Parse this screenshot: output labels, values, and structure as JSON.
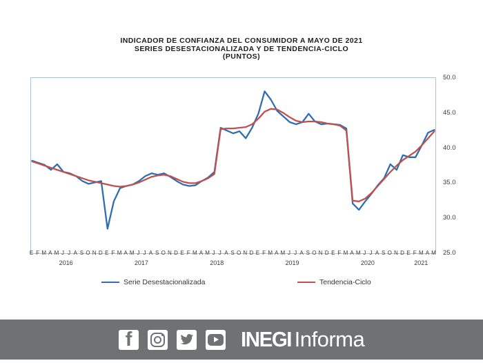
{
  "title": {
    "line1": "INDICADOR DE CONFIANZA DEL CONSUMIDOR A MAYO DE 2021",
    "line2": "SERIES DESESTACIONALIZADA Y DE TENDENCIA-CICLO",
    "line3": "(PUNTOS)"
  },
  "chart_data": {
    "type": "line",
    "title": "INDICADOR DE CONFIANZA DEL CONSUMIDOR A MAYO DE 2021",
    "subtitle": "SERIES DESESTACIONALIZADA Y DE TENDENCIA-CICLO (PUNTOS)",
    "ylim": [
      25,
      50
    ],
    "ytick_labels": [
      "50.0",
      "45.0",
      "40.0",
      "35.0",
      "30.0",
      "25.0"
    ],
    "grid": false,
    "legend_position": "bottom",
    "x_start": "Enero 2016",
    "x_end": "Mayo 2021",
    "month_labels": [
      "E",
      "F",
      "M",
      "A",
      "M",
      "J",
      "J",
      "A",
      "S",
      "O",
      "N",
      "D",
      "E",
      "F",
      "M",
      "A",
      "M",
      "J",
      "J",
      "A",
      "S",
      "O",
      "N",
      "D",
      "E",
      "F",
      "M",
      "A",
      "M",
      "J",
      "J",
      "A",
      "S",
      "O",
      "N",
      "D",
      "E",
      "F",
      "M",
      "A",
      "M",
      "J",
      "J",
      "A",
      "S",
      "O",
      "N",
      "D",
      "E",
      "F",
      "M",
      "A",
      "M",
      "J",
      "J",
      "A",
      "S",
      "O",
      "N",
      "D",
      "E",
      "F",
      "M",
      "A",
      "M"
    ],
    "year_labels": [
      {
        "label": "2016",
        "center": 5.5
      },
      {
        "label": "2017",
        "center": 17.5
      },
      {
        "label": "2018",
        "center": 29.5
      },
      {
        "label": "2019",
        "center": 41.5
      },
      {
        "label": "2020",
        "center": 53.5
      },
      {
        "label": "2021",
        "center": 62
      }
    ],
    "series": [
      {
        "name": "Serie Desestacionalizada",
        "color": "#2E6DB4",
        "values": [
          38.2,
          37.9,
          37.6,
          36.9,
          37.7,
          36.6,
          36.4,
          36.0,
          35.3,
          34.9,
          35.1,
          35.3,
          28.5,
          32.4,
          34.3,
          34.6,
          34.8,
          35.3,
          36.0,
          36.4,
          36.2,
          36.4,
          35.9,
          35.3,
          34.8,
          34.6,
          34.7,
          35.3,
          35.8,
          36.6,
          42.9,
          42.5,
          42.1,
          42.4,
          41.4,
          42.9,
          44.9,
          48.1,
          46.9,
          45.3,
          44.5,
          43.7,
          43.4,
          43.7,
          44.9,
          43.8,
          43.4,
          43.5,
          43.4,
          43.3,
          42.8,
          32.1,
          31.2,
          32.4,
          33.5,
          34.7,
          35.7,
          37.7,
          36.9,
          39.0,
          38.7,
          38.7,
          40.4,
          42.2,
          42.6
        ]
      },
      {
        "name": "Tendencia-Ciclo",
        "color": "#C0504D",
        "values": [
          38.1,
          37.8,
          37.5,
          37.2,
          36.9,
          36.6,
          36.3,
          36.0,
          35.7,
          35.4,
          35.2,
          35.0,
          34.8,
          34.6,
          34.5,
          34.6,
          34.8,
          35.1,
          35.5,
          35.9,
          36.1,
          36.2,
          36.0,
          35.6,
          35.2,
          35.0,
          35.0,
          35.3,
          35.7,
          36.3,
          42.7,
          42.8,
          42.8,
          42.9,
          43.0,
          43.4,
          44.2,
          45.2,
          45.6,
          45.5,
          45.0,
          44.4,
          43.9,
          43.7,
          43.8,
          43.8,
          43.7,
          43.5,
          43.4,
          43.2,
          42.5,
          32.5,
          32.4,
          32.8,
          33.6,
          34.6,
          35.6,
          36.6,
          37.5,
          38.3,
          38.9,
          39.5,
          40.4,
          41.4,
          42.4
        ]
      }
    ]
  },
  "footer": {
    "bg_color": "#6F7173",
    "icons": [
      "facebook-icon",
      "instagram-icon",
      "twitter-icon",
      "youtube-icon"
    ],
    "brand_bold": "INEGI",
    "brand_light": "Informa"
  }
}
